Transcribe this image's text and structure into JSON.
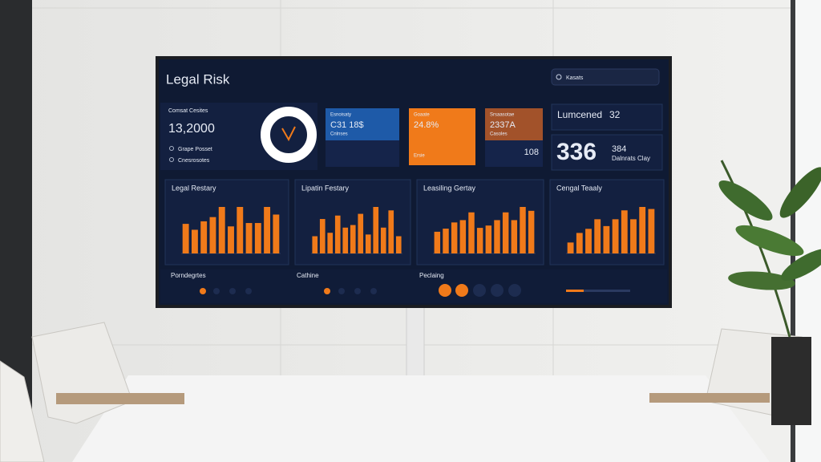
{
  "header": {
    "title": "Legal Risk",
    "search": "Kasats"
  },
  "summary": {
    "label": "Comsat Cesites",
    "value": "13,2000",
    "links": [
      "Grape Posset",
      "Cnesrosotes"
    ]
  },
  "cards": [
    {
      "label": "Esnoisaty",
      "value": "C31 18$",
      "sub": "Cnlnses"
    },
    {
      "label": "Goaate",
      "value": "24.8%",
      "sub": "Ersie"
    },
    {
      "label": "Srsaasotae",
      "value": "2337A",
      "sub": "Casoles",
      "extra": "108"
    }
  ],
  "kpi": {
    "label": "Lumcened",
    "value": "32",
    "big": "336",
    "small": "384",
    "caption": "Dalnrats Clay"
  },
  "charts": [
    {
      "title": "Legal Restary",
      "values": [
        3.5,
        2.8,
        3.8,
        4.3,
        5.5,
        3.2,
        5.5,
        3.6,
        3.6,
        5.5,
        4.6
      ]
    },
    {
      "title": "Lipatin Festary",
      "values": [
        2.0,
        4.0,
        2.4,
        4.4,
        3.0,
        3.3,
        4.6,
        2.2,
        5.4,
        3.0,
        5.0,
        2.0
      ]
    },
    {
      "title": "Leasiling Gertay",
      "values": [
        2.8,
        3.2,
        4.0,
        4.3,
        5.3,
        3.3,
        3.6,
        4.3,
        5.3,
        4.3,
        6.0,
        5.5
      ]
    },
    {
      "title": "Cengal Teaaly",
      "values": [
        1.6,
        3.0,
        3.6,
        5.0,
        4.0,
        5.0,
        6.3,
        5.0,
        6.8,
        6.5
      ]
    }
  ],
  "footer": [
    "Porndegrtes",
    "Cathine",
    "Peclaing"
  ]
}
